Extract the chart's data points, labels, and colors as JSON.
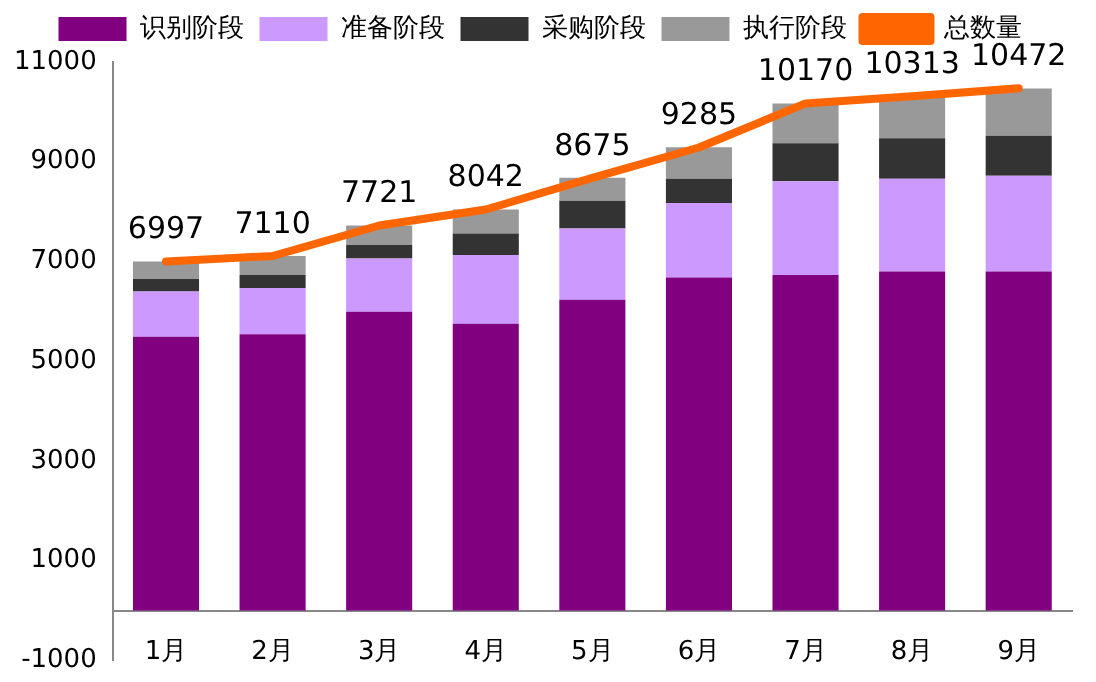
{
  "chart_data": {
    "type": "bar",
    "stacked": true,
    "categories": [
      "1月",
      "2月",
      "3月",
      "4月",
      "5月",
      "6月",
      "7月",
      "8月",
      "9月"
    ],
    "series": [
      {
        "name": "识别阶段",
        "color": "#800080",
        "values": [
          5490,
          5540,
          5990,
          5750,
          6230,
          6680,
          6730,
          6800,
          6800
        ]
      },
      {
        "name": "准备阶段",
        "color": "#cc99ff",
        "values": [
          910,
          930,
          1070,
          1380,
          1430,
          1490,
          1880,
          1860,
          1920
        ]
      },
      {
        "name": "采购阶段",
        "color": "#333333",
        "values": [
          250,
          260,
          270,
          430,
          560,
          490,
          760,
          810,
          800
        ]
      },
      {
        "name": "执行阶段",
        "color": "#999999",
        "values": [
          350,
          380,
          390,
          480,
          460,
          630,
          800,
          840,
          950
        ]
      },
      {
        "name": "总数量",
        "type": "line",
        "color": "#ff6600",
        "values": [
          6997,
          7110,
          7721,
          8042,
          8675,
          9285,
          10170,
          10313,
          10472
        ],
        "value_labels": [
          "6997",
          "7110",
          "7721",
          "8042",
          "8675",
          "9285",
          "10170",
          "10313",
          "10472"
        ]
      }
    ],
    "ylim": [
      -1000,
      11000
    ],
    "yticks": [
      -1000,
      1000,
      3000,
      5000,
      7000,
      9000,
      11000
    ],
    "grid": false,
    "legend": "top",
    "marker": "none"
  }
}
